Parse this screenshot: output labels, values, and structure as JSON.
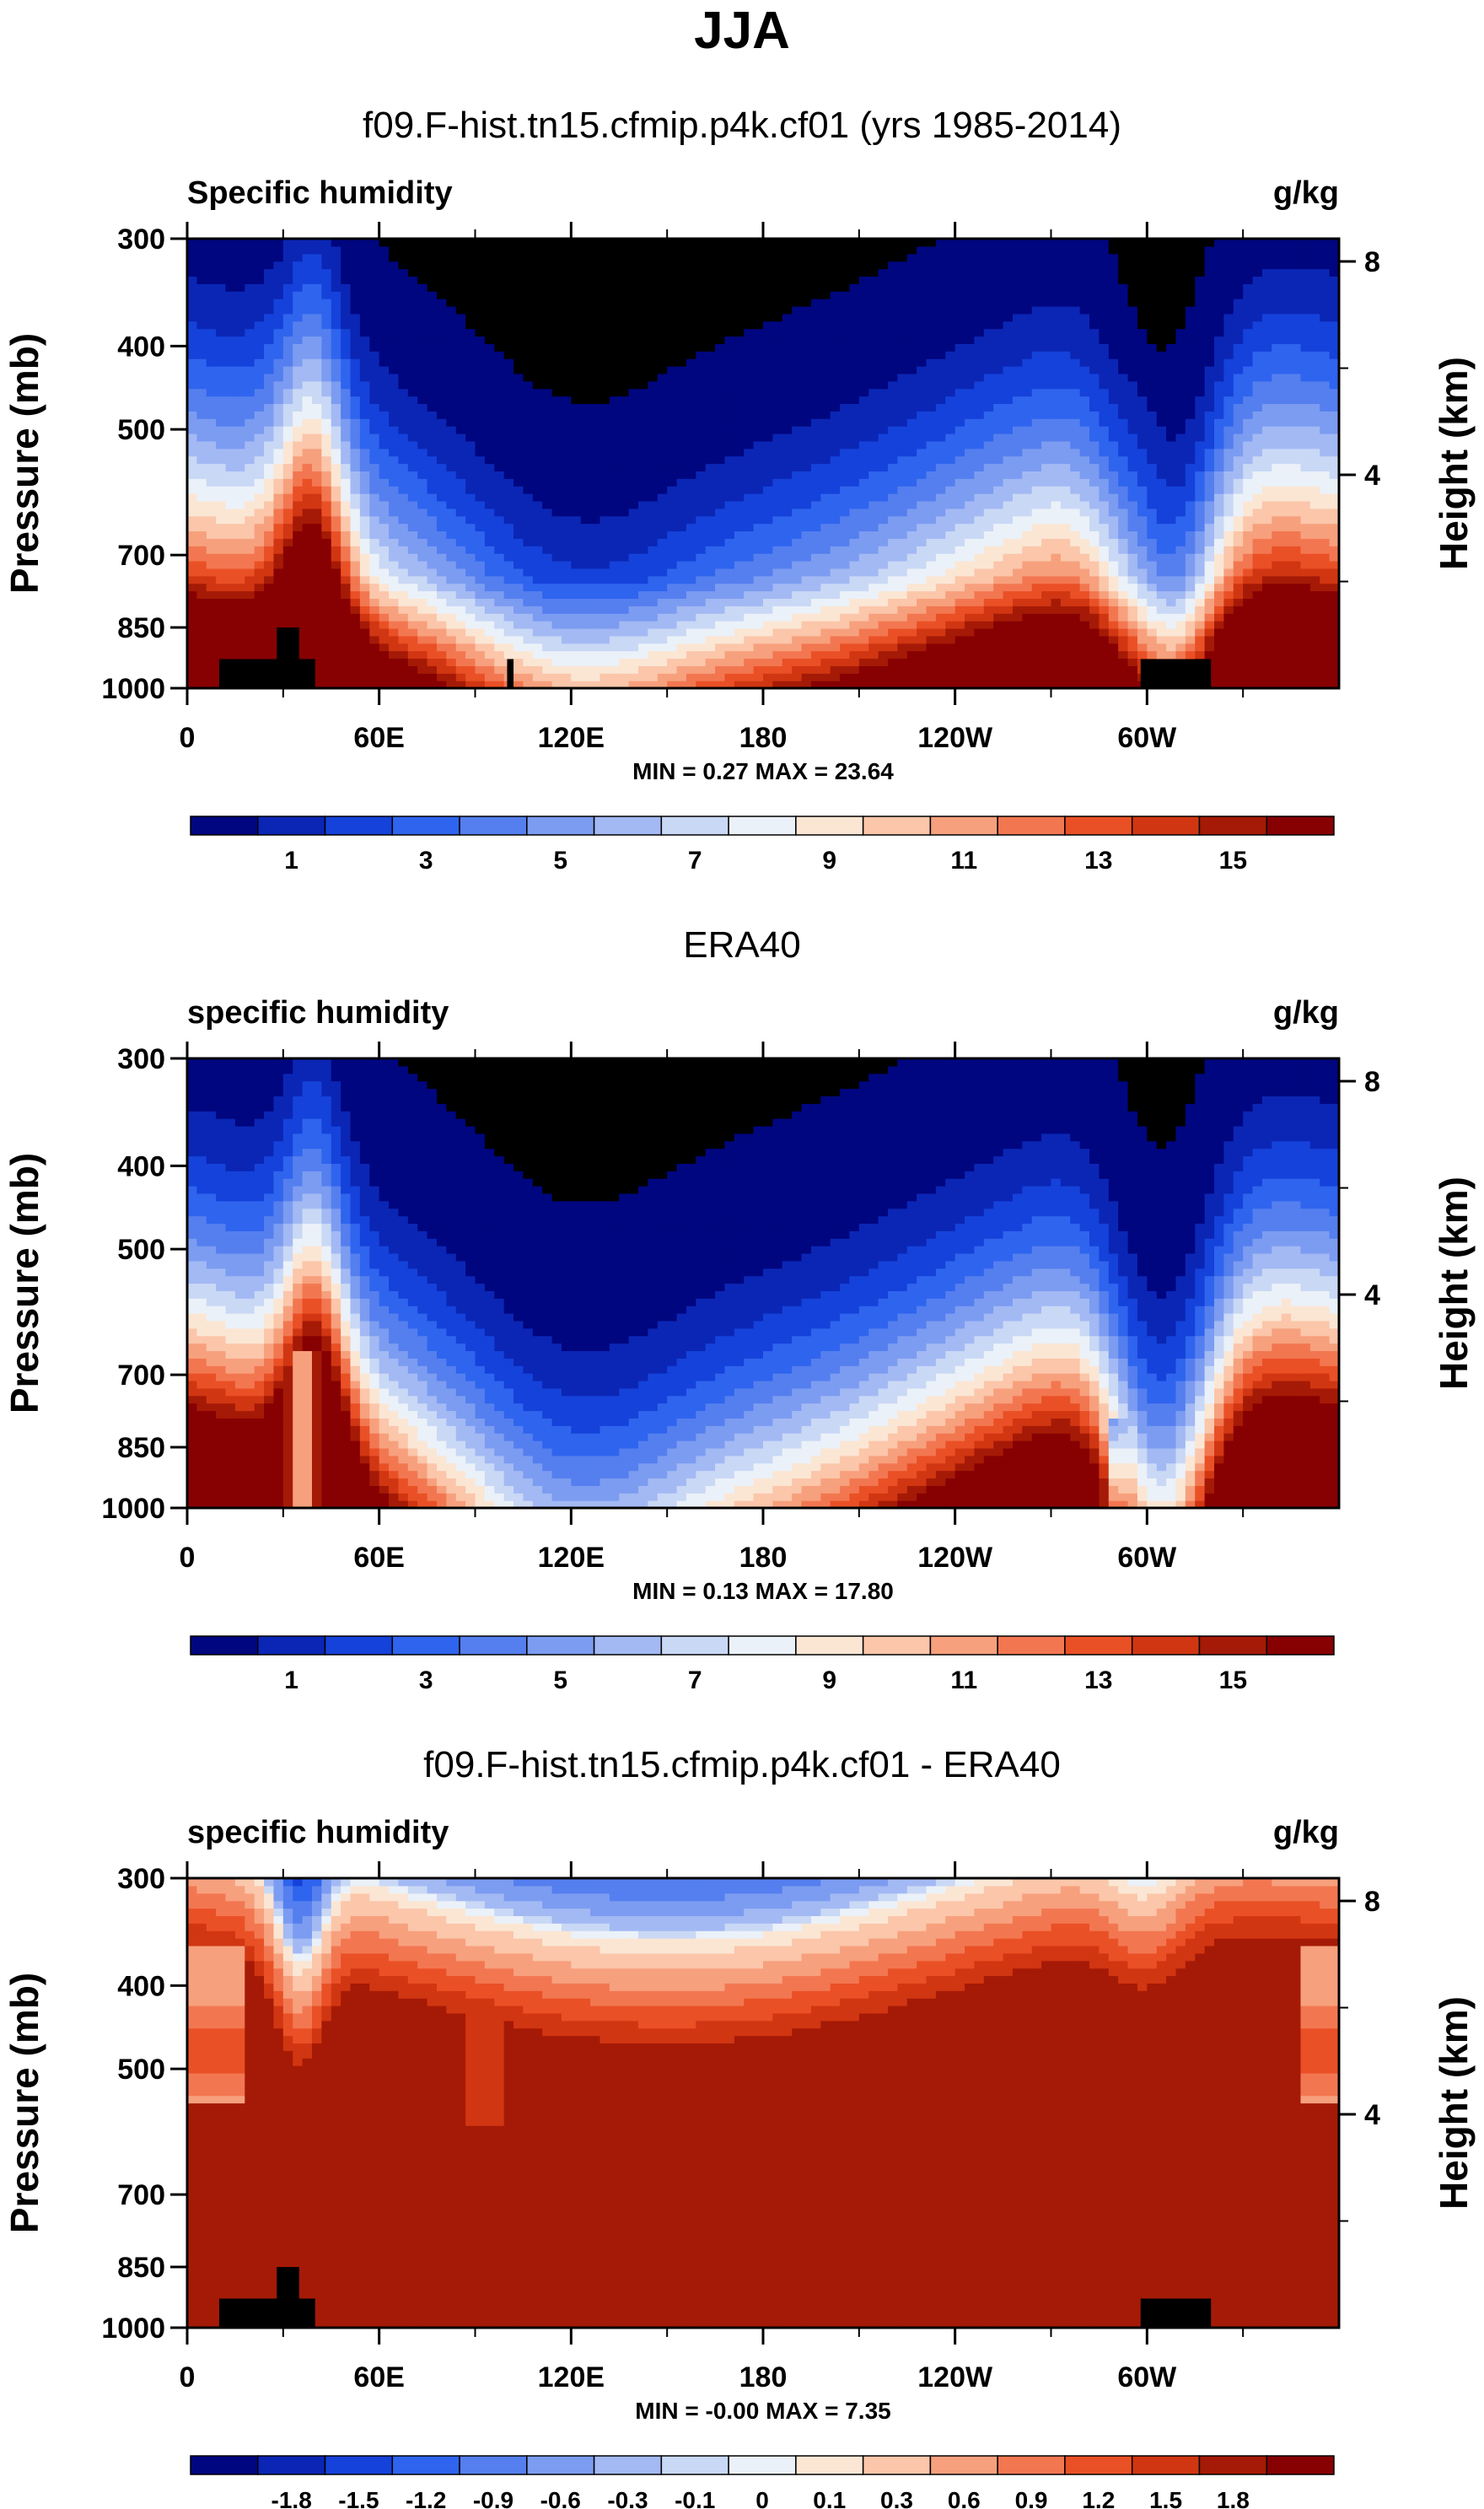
{
  "figure_title": "JJA",
  "chart_data": [
    {
      "type": "heatmap",
      "title": "f09.F-hist.tn15.cfmip.p4k.cf01 (yrs 1985-2014)",
      "left_label": "Specific humidity",
      "units": "g/kg",
      "ylabel": "Pressure (mb)",
      "ylabel_right": "Height (km)",
      "x_ticks": [
        "0",
        "60E",
        "120E",
        "180",
        "120W",
        "60W"
      ],
      "x_tick_lon": [
        0,
        60,
        120,
        180,
        240,
        300
      ],
      "xlim": [
        0,
        360
      ],
      "y_ticks": [
        "300",
        "400",
        "500",
        "700",
        "850",
        "1000"
      ],
      "y_tick_p": [
        300,
        400,
        500,
        700,
        850,
        1000
      ],
      "ylim": [
        1000,
        300
      ],
      "right_ticks": [
        "8",
        "4"
      ],
      "right_tick_km": [
        8,
        4
      ],
      "stats": "MIN =   0.27  MAX =  23.64",
      "min": 0.27,
      "max": 23.64,
      "colorbar_labels": [
        "1",
        "3",
        "5",
        "7",
        "9",
        "11",
        "13",
        "15"
      ],
      "field": "model",
      "land_mask": true
    },
    {
      "type": "heatmap",
      "title": "ERA40",
      "left_label": "specific humidity",
      "units": "g/kg",
      "ylabel": "Pressure (mb)",
      "ylabel_right": "Height (km)",
      "x_ticks": [
        "0",
        "60E",
        "120E",
        "180",
        "120W",
        "60W"
      ],
      "x_tick_lon": [
        0,
        60,
        120,
        180,
        240,
        300
      ],
      "xlim": [
        0,
        360
      ],
      "y_ticks": [
        "300",
        "400",
        "500",
        "700",
        "850",
        "1000"
      ],
      "y_tick_p": [
        300,
        400,
        500,
        700,
        850,
        1000
      ],
      "ylim": [
        1000,
        300
      ],
      "right_ticks": [
        "8",
        "4"
      ],
      "right_tick_km": [
        8,
        4
      ],
      "stats": "MIN =   0.13  MAX =  17.80",
      "min": 0.13,
      "max": 17.8,
      "colorbar_labels": [
        "1",
        "3",
        "5",
        "7",
        "9",
        "11",
        "13",
        "15"
      ],
      "field": "obs",
      "land_mask": false
    },
    {
      "type": "heatmap",
      "title": "f09.F-hist.tn15.cfmip.p4k.cf01 - ERA40",
      "left_label": "specific humidity",
      "units": "g/kg",
      "ylabel": "Pressure (mb)",
      "ylabel_right": "Height (km)",
      "x_ticks": [
        "0",
        "60E",
        "120E",
        "180",
        "120W",
        "60W"
      ],
      "x_tick_lon": [
        0,
        60,
        120,
        180,
        240,
        300
      ],
      "xlim": [
        0,
        360
      ],
      "y_ticks": [
        "300",
        "400",
        "500",
        "700",
        "850",
        "1000"
      ],
      "y_tick_p": [
        300,
        400,
        500,
        700,
        850,
        1000
      ],
      "ylim": [
        1000,
        300
      ],
      "right_ticks": [
        "8",
        "4"
      ],
      "right_tick_km": [
        8,
        4
      ],
      "stats": "MIN =  -0.00  MAX =   7.35",
      "min": -0.0,
      "max": 7.35,
      "colorbar_labels": [
        "-1.8",
        "-1.5",
        "-1.2",
        "-0.9",
        "-0.6",
        "-0.3",
        "-0.1",
        "0",
        "0.1",
        "0.3",
        "0.6",
        "0.9",
        "1.2",
        "1.5",
        "1.8"
      ],
      "field": "diff",
      "land_mask": true
    }
  ],
  "palette": [
    "#00067f",
    "#0b26b5",
    "#1542da",
    "#2f64ee",
    "#557fef",
    "#7c9cf1",
    "#a3b9f4",
    "#c9d8f5",
    "#ebf1f8",
    "#fbe6d4",
    "#fbc6aa",
    "#f7a07d",
    "#f27751",
    "#ea5026",
    "#d13612",
    "#a51a06",
    "#870103"
  ],
  "land_color": "#000000"
}
